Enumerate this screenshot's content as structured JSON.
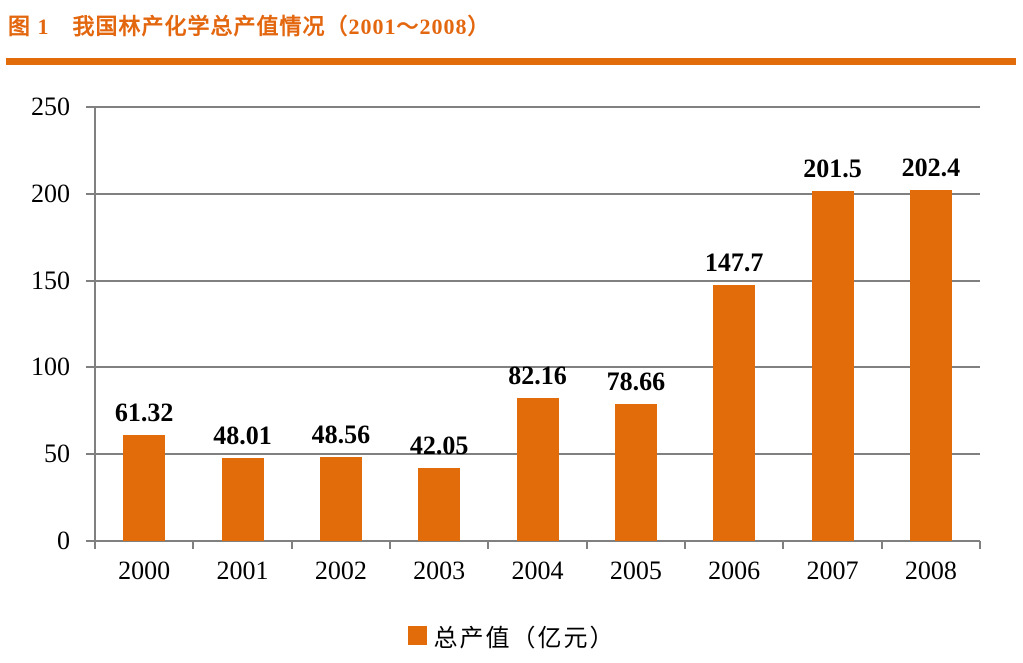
{
  "title": "图 1　我国林产化学总产值情况（2001～2008）",
  "accent_color": "#E3670F",
  "rule_color": "#E36C0A",
  "axis_color": "#808080",
  "chart_data": {
    "type": "bar",
    "title": "图 1 我国林产化学总产值情况（2001～2008）",
    "categories": [
      "2000",
      "2001",
      "2002",
      "2003",
      "2004",
      "2005",
      "2006",
      "2007",
      "2008"
    ],
    "values": [
      61.32,
      48.01,
      48.56,
      42.05,
      82.16,
      78.66,
      147.7,
      201.5,
      202.4
    ],
    "value_labels": [
      "61.32",
      "48.01",
      "48.56",
      "42.05",
      "82.16",
      "78.66",
      "147.7",
      "201.5",
      "202.4"
    ],
    "bar_color": "#E36C0A",
    "xlabel": "",
    "ylabel": "",
    "ylim": [
      0,
      250
    ],
    "yticks": [
      0,
      50,
      100,
      150,
      200,
      250
    ],
    "grid": true,
    "legend": {
      "label": "总产值（亿元）",
      "position": "bottom"
    }
  }
}
